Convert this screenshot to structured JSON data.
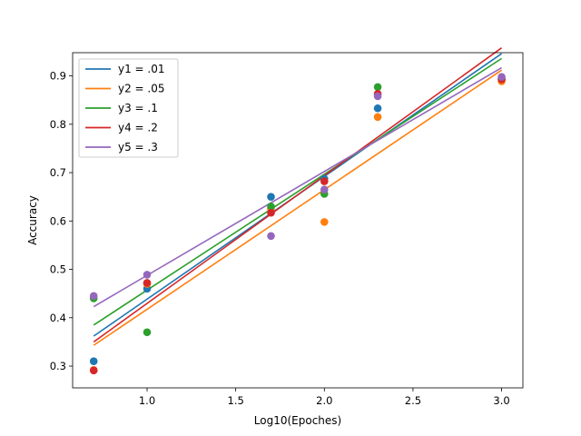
{
  "chart_data": {
    "type": "scatter",
    "xlabel": "Log10(Epoches)",
    "ylabel": "Accuracy",
    "xlim": [
      0.58,
      3.12
    ],
    "ylim": [
      0.255,
      0.948
    ],
    "xticks": [
      1.0,
      1.5,
      2.0,
      2.5,
      3.0
    ],
    "xtick_labels": [
      "1.0",
      "1.5",
      "2.0",
      "2.5",
      "3.0"
    ],
    "yticks": [
      0.3,
      0.4,
      0.5,
      0.6,
      0.7,
      0.8,
      0.9
    ],
    "ytick_labels": [
      "0.3",
      "0.4",
      "0.5",
      "0.6",
      "0.7",
      "0.8",
      "0.9"
    ],
    "grid": false,
    "legend_position": "top-left",
    "x": [
      0.699,
      1.0,
      1.699,
      2.0,
      2.301,
      3.0
    ],
    "series": [
      {
        "name": "y1 = .01",
        "color": "#1f77b4",
        "points": [
          0.31,
          0.46,
          0.65,
          0.687,
          0.833,
          0.895
        ],
        "fit": [
          0.362,
          0.946
        ]
      },
      {
        "name": "y2 = .05",
        "color": "#ff7f0e",
        "points": [
          0.292,
          0.47,
          0.625,
          0.598,
          0.815,
          0.889
        ],
        "fit": [
          0.343,
          0.912
        ]
      },
      {
        "name": "y3 = .1",
        "color": "#2ca02c",
        "points": [
          0.44,
          0.37,
          0.63,
          0.656,
          0.877,
          0.893
        ],
        "fit": [
          0.385,
          0.936
        ]
      },
      {
        "name": "y4 = .2",
        "color": "#d62728",
        "points": [
          0.291,
          0.472,
          0.617,
          0.682,
          0.863,
          0.893
        ],
        "fit": [
          0.35,
          0.958
        ]
      },
      {
        "name": "y5 = .3",
        "color": "#9467bd",
        "points": [
          0.445,
          0.489,
          0.569,
          0.665,
          0.858,
          0.898
        ],
        "fit": [
          0.423,
          0.917
        ]
      }
    ]
  }
}
